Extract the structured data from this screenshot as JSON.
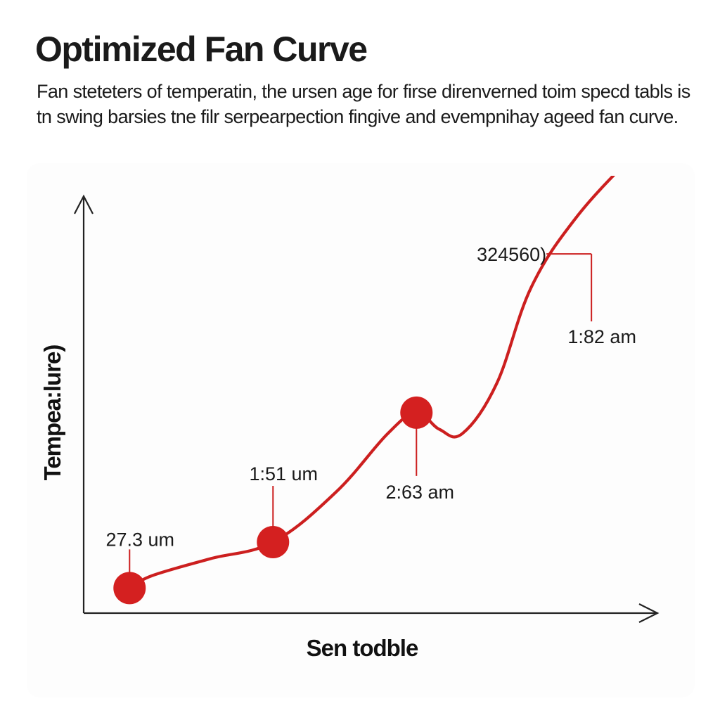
{
  "title": "Optimized Fan Curve",
  "description": "Fan steteters of temperatin, the ursen age for firse direnverned toim specd tabls is tn swing barsies tne filr serpearpection fingive and evempnihay ageed fan curve.",
  "colors": {
    "curve": "#cc1f1f",
    "marker": "#d42020",
    "axis": "#222222",
    "text": "#1a1a1a"
  },
  "chart_data": {
    "type": "line",
    "title": "Optimized Fan Curve",
    "xlabel": "Sen todble",
    "ylabel": "Tempea:lure)",
    "grid": false,
    "legend": "none",
    "xlim": [
      0,
      100
    ],
    "ylim": [
      0,
      100
    ],
    "series": [
      {
        "x": [
          8,
          12,
          22,
          33,
          44,
          53,
          58,
          62,
          66,
          72,
          78,
          86,
          96
        ],
        "y": [
          6,
          9,
          13,
          17,
          29,
          43,
          48,
          44,
          43,
          55,
          78,
          95,
          110
        ],
        "marker_points": [
          0,
          3,
          6
        ]
      }
    ],
    "annotations": [
      {
        "point": 0,
        "text": "27.3 um"
      },
      {
        "point": 3,
        "text": "1:51 um"
      },
      {
        "point": 6,
        "text": "2:63 am"
      },
      {
        "x": 88.5,
        "y": 86,
        "text": "324560)"
      },
      {
        "x": 88.5,
        "y": 86,
        "text": "1:82 am"
      }
    ]
  }
}
